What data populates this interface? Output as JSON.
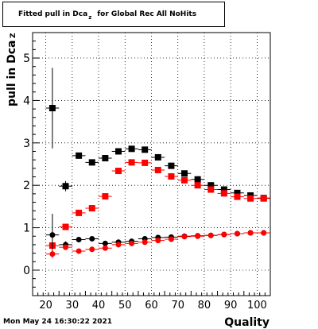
{
  "chart_data": {
    "type": "scatter",
    "title": {
      "prefix": "Fitted pull in Dca",
      "subscript": "z",
      "suffix": "for Global Rec All NoHits"
    },
    "xlabel": "Quality",
    "ylabel": {
      "main": "pull in Dca",
      "subscript": "Z"
    },
    "xlim": [
      15,
      105
    ],
    "ylim": [
      -0.6,
      5.6
    ],
    "x_ticks": [
      20,
      30,
      40,
      50,
      60,
      70,
      80,
      90,
      100
    ],
    "y_ticks": [
      0,
      1,
      2,
      3,
      4,
      5
    ],
    "grid": true,
    "x": [
      22.5,
      27.5,
      32.5,
      37.5,
      42.5,
      47.5,
      52.5,
      57.5,
      62.5,
      67.5,
      72.5,
      77.5,
      82.5,
      87.5,
      92.5,
      97.5,
      102.5
    ],
    "series": [
      {
        "color": "#000000",
        "marker": "square",
        "values": [
          3.82,
          1.98,
          2.7,
          2.54,
          2.64,
          2.8,
          2.86,
          2.84,
          2.66,
          2.46,
          2.28,
          2.14,
          2.0,
          1.9,
          1.82,
          1.76,
          1.7
        ],
        "errors": [
          0.95,
          0.12,
          0.06,
          0.05,
          0.04,
          0.04,
          0.04,
          0.04,
          0.04,
          0.04,
          0.03,
          0.03,
          0.03,
          0.03,
          0.03,
          0.03,
          0.03
        ]
      },
      {
        "color": "#ff0000",
        "marker": "square",
        "values": [
          0.58,
          1.02,
          1.35,
          1.46,
          1.74,
          2.34,
          2.54,
          2.53,
          2.36,
          2.21,
          2.12,
          2.0,
          1.9,
          1.81,
          1.73,
          1.69,
          1.69
        ],
        "errors": [
          0.06,
          0.05,
          0.04,
          0.04,
          0.04,
          0.04,
          0.04,
          0.04,
          0.03,
          0.03,
          0.03,
          0.03,
          0.03,
          0.03,
          0.03,
          0.03,
          0.03
        ]
      },
      {
        "color": "#000000",
        "marker": "circle",
        "values": [
          0.83,
          0.6,
          0.72,
          0.74,
          0.63,
          0.66,
          0.68,
          0.74,
          0.77,
          0.78,
          0.8,
          0.81,
          0.82,
          0.84,
          0.86,
          0.88,
          0.88
        ],
        "errors": [
          0.5,
          0.08,
          0.05,
          0.04,
          0.04,
          0.03,
          0.03,
          0.03,
          0.03,
          0.03,
          0.03,
          0.03,
          0.03,
          0.03,
          0.03,
          0.03,
          0.03
        ]
      },
      {
        "color": "#ff0000",
        "marker": "circle",
        "values": [
          0.38,
          0.54,
          0.45,
          0.49,
          0.52,
          0.6,
          0.63,
          0.66,
          0.7,
          0.73,
          0.79,
          0.8,
          0.82,
          0.84,
          0.86,
          0.88,
          0.88
        ],
        "errors": [
          0.1,
          0.05,
          0.04,
          0.03,
          0.03,
          0.03,
          0.03,
          0.03,
          0.03,
          0.03,
          0.03,
          0.03,
          0.03,
          0.03,
          0.03,
          0.03,
          0.03
        ]
      }
    ]
  },
  "footer": {
    "timestamp": "Mon May 24 16:30:22 2021"
  }
}
